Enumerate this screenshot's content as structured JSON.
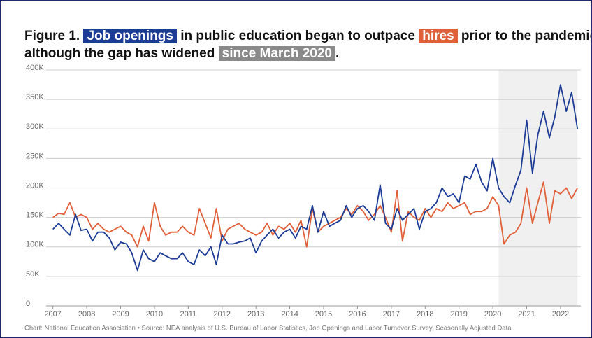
{
  "chart_data": {
    "type": "line",
    "title_lines": [
      [
        {
          "text": "Figure 1. "
        },
        {
          "text": "Job openings",
          "highlight": "#1c3c96"
        },
        {
          "text": " in public education began to outpace "
        },
        {
          "text": "hires",
          "highlight": "#e0603a"
        },
        {
          "text": " prior to the pandemic,"
        }
      ],
      [
        {
          "text": "although the gap has widened "
        },
        {
          "text": "since March 2020",
          "highlight": "#8a8a8a"
        },
        {
          "text": "."
        }
      ]
    ],
    "source": "Chart: National Education Association • Source: NEA analysis of U.S. Bureau of Labor Statistics, Job Openings and Labor Turnover Survey, Seasonally Adjusted Data",
    "x": [
      2007,
      2007.17,
      2007.33,
      2007.5,
      2007.67,
      2007.83,
      2008,
      2008.17,
      2008.33,
      2008.5,
      2008.67,
      2008.83,
      2009,
      2009.17,
      2009.33,
      2009.5,
      2009.67,
      2009.83,
      2010,
      2010.17,
      2010.33,
      2010.5,
      2010.67,
      2010.83,
      2011,
      2011.17,
      2011.33,
      2011.5,
      2011.67,
      2011.83,
      2012,
      2012.17,
      2012.33,
      2012.5,
      2012.67,
      2012.83,
      2013,
      2013.17,
      2013.33,
      2013.5,
      2013.67,
      2013.83,
      2014,
      2014.17,
      2014.33,
      2014.5,
      2014.67,
      2014.83,
      2015,
      2015.17,
      2015.33,
      2015.5,
      2015.67,
      2015.83,
      2016,
      2016.17,
      2016.33,
      2016.5,
      2016.67,
      2016.83,
      2017,
      2017.17,
      2017.33,
      2017.5,
      2017.67,
      2017.83,
      2018,
      2018.17,
      2018.33,
      2018.5,
      2018.67,
      2018.83,
      2019,
      2019.17,
      2019.33,
      2019.5,
      2019.67,
      2019.83,
      2020,
      2020.17,
      2020.33,
      2020.5,
      2020.67,
      2020.83,
      2021,
      2021.17,
      2021.33,
      2021.5,
      2021.67,
      2021.83,
      2022,
      2022.17,
      2022.33,
      2022.5
    ],
    "series": [
      {
        "color": "#1c3c96",
        "values": [
          130,
          140,
          130,
          120,
          155,
          128,
          130,
          110,
          125,
          125,
          115,
          95,
          108,
          105,
          90,
          60,
          95,
          80,
          75,
          90,
          85,
          80,
          80,
          90,
          75,
          70,
          95,
          85,
          100,
          70,
          120,
          105,
          105,
          108,
          110,
          115,
          90,
          110,
          120,
          130,
          115,
          125,
          130,
          115,
          135,
          130,
          170,
          125,
          160,
          135,
          140,
          145,
          170,
          150,
          165,
          170,
          160,
          145,
          205,
          140,
          130,
          165,
          145,
          155,
          165,
          130,
          160,
          165,
          175,
          200,
          185,
          190,
          175,
          220,
          215,
          240,
          210,
          195,
          250,
          200,
          185,
          175,
          205,
          230,
          315,
          225,
          290,
          330,
          285,
          320,
          375,
          330,
          362,
          300
        ]
      },
      {
        "color": "#e0603a",
        "values": [
          150,
          157,
          155,
          175,
          150,
          155,
          150,
          130,
          140,
          130,
          125,
          130,
          135,
          125,
          120,
          100,
          135,
          110,
          175,
          135,
          120,
          125,
          125,
          135,
          125,
          120,
          165,
          140,
          115,
          165,
          110,
          130,
          135,
          140,
          130,
          125,
          120,
          125,
          140,
          120,
          135,
          130,
          140,
          125,
          145,
          100,
          165,
          125,
          135,
          140,
          145,
          150,
          165,
          155,
          170,
          160,
          145,
          155,
          170,
          150,
          125,
          195,
          110,
          160,
          150,
          145,
          165,
          150,
          165,
          160,
          175,
          165,
          170,
          175,
          155,
          160,
          160,
          165,
          185,
          170,
          105,
          120,
          125,
          140,
          200,
          140,
          175,
          210,
          140,
          195,
          190,
          200,
          182,
          200
        ]
      }
    ],
    "shade": {
      "from": 2020.17,
      "to": 2022.5,
      "color": "#f0f0f0"
    },
    "xlim": [
      2006.8,
      2022.6
    ],
    "xticks": [
      2007,
      2008,
      2009,
      2010,
      2011,
      2012,
      2013,
      2014,
      2015,
      2016,
      2017,
      2018,
      2019,
      2020,
      2021,
      2022
    ],
    "ylim": [
      0,
      400
    ],
    "yticks": [
      0,
      {
        "value": 50,
        "label": "50K"
      },
      {
        "value": 100,
        "label": "100K"
      },
      {
        "value": 150,
        "label": "150K"
      },
      {
        "value": 200,
        "label": "200K"
      },
      {
        "value": 250,
        "label": "250K"
      },
      {
        "value": 300,
        "label": "300K"
      },
      {
        "value": 350,
        "label": "350K"
      },
      {
        "value": 400,
        "label": "400K"
      }
    ],
    "grid": true
  }
}
